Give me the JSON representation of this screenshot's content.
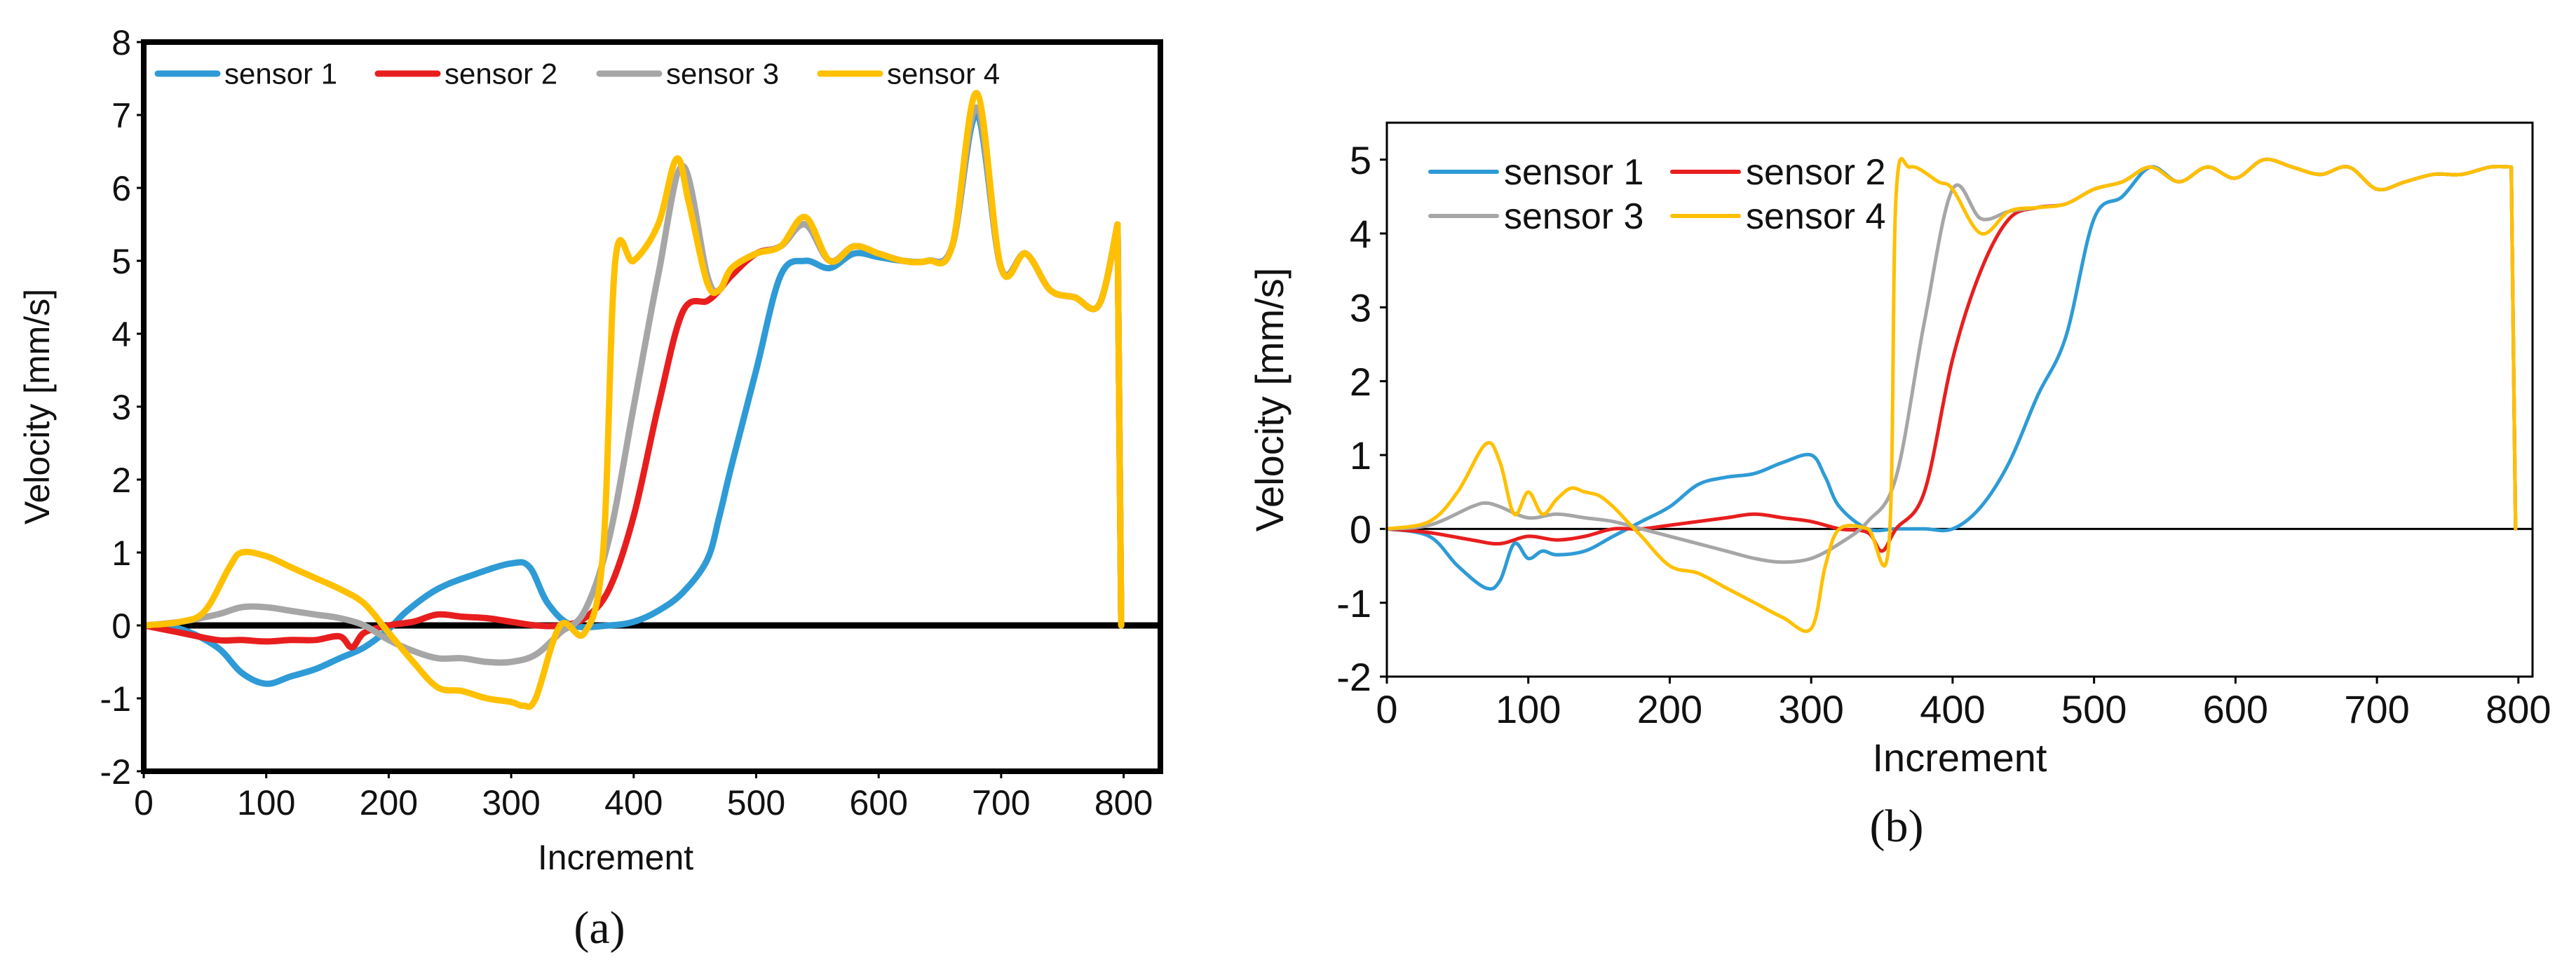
{
  "chart_data": [
    {
      "panel": "a",
      "panel_label": "(a)",
      "type": "line",
      "title": "",
      "xlabel": "Increment",
      "ylabel": "Velocity [mm/s]",
      "xlim": [
        0,
        830
      ],
      "ylim": [
        -2,
        8
      ],
      "xticks": [
        0,
        100,
        200,
        300,
        400,
        500,
        600,
        700,
        800
      ],
      "yticks": [
        -2,
        -1,
        0,
        1,
        2,
        3,
        4,
        5,
        6,
        7,
        8
      ],
      "legend": "top-left, single row",
      "series": [
        {
          "name": "sensor 1",
          "color": "#2e9bd6",
          "x": [
            0,
            30,
            60,
            80,
            100,
            120,
            140,
            160,
            180,
            200,
            215,
            240,
            270,
            300,
            315,
            330,
            350,
            380,
            400,
            420,
            440,
            460,
            470,
            480,
            500,
            520,
            540,
            560,
            580,
            600,
            620,
            640,
            660,
            680,
            700,
            720,
            740,
            760,
            780,
            795,
            798
          ],
          "y": [
            0,
            -0.05,
            -0.3,
            -0.65,
            -0.8,
            -0.7,
            -0.6,
            -0.45,
            -0.3,
            -0.05,
            0.2,
            0.5,
            0.7,
            0.85,
            0.8,
            0.3,
            0,
            0,
            0.05,
            0.2,
            0.45,
            0.9,
            1.5,
            2.2,
            3.5,
            4.8,
            5.0,
            4.9,
            5.1,
            5.05,
            5.0,
            5.0,
            5.2,
            7.0,
            4.9,
            5.1,
            4.6,
            4.5,
            4.4,
            5.5,
            0
          ]
        },
        {
          "name": "sensor 2",
          "color": "#e81e1e",
          "x": [
            0,
            30,
            60,
            80,
            100,
            120,
            140,
            160,
            170,
            180,
            200,
            220,
            240,
            260,
            280,
            300,
            320,
            340,
            360,
            380,
            400,
            420,
            440,
            460,
            470,
            480,
            500,
            520,
            540,
            560,
            580,
            600,
            620,
            640,
            660,
            680,
            700,
            720,
            740,
            760,
            780,
            795,
            798
          ],
          "y": [
            0,
            -0.1,
            -0.2,
            -0.2,
            -0.22,
            -0.2,
            -0.2,
            -0.15,
            -0.3,
            -0.1,
            0,
            0.05,
            0.15,
            0.12,
            0.1,
            0.05,
            0,
            0,
            0.1,
            0.5,
            1.5,
            3.0,
            4.3,
            4.45,
            4.6,
            4.8,
            5.1,
            5.2,
            5.5,
            5.0,
            5.2,
            5.1,
            5.0,
            5.0,
            5.2,
            7.1,
            4.9,
            5.1,
            4.6,
            4.5,
            4.4,
            5.5,
            0
          ]
        },
        {
          "name": "sensor 3",
          "color": "#a6a6a6",
          "x": [
            0,
            30,
            60,
            80,
            100,
            120,
            140,
            160,
            180,
            200,
            220,
            240,
            260,
            280,
            300,
            320,
            340,
            360,
            380,
            400,
            420,
            440,
            460,
            470,
            480,
            500,
            520,
            540,
            560,
            580,
            600,
            620,
            640,
            660,
            680,
            700,
            720,
            740,
            760,
            780,
            795,
            798
          ],
          "y": [
            0,
            0.05,
            0.15,
            0.25,
            0.25,
            0.2,
            0.15,
            0.1,
            0,
            -0.2,
            -0.35,
            -0.45,
            -0.45,
            -0.5,
            -0.5,
            -0.4,
            -0.1,
            0.2,
            1.2,
            3.0,
            4.8,
            6.3,
            4.8,
            4.6,
            4.9,
            5.1,
            5.2,
            5.5,
            5.0,
            5.2,
            5.1,
            5.0,
            5.0,
            5.2,
            7.1,
            4.9,
            5.1,
            4.6,
            4.5,
            4.4,
            5.5,
            0
          ]
        },
        {
          "name": "sensor 4",
          "color": "#ffc000",
          "x": [
            0,
            30,
            50,
            70,
            80,
            100,
            120,
            140,
            160,
            180,
            200,
            220,
            240,
            260,
            280,
            300,
            310,
            320,
            340,
            360,
            375,
            385,
            400,
            420,
            435,
            445,
            460,
            470,
            480,
            500,
            520,
            540,
            560,
            580,
            600,
            620,
            640,
            660,
            680,
            700,
            720,
            740,
            760,
            780,
            795,
            798
          ],
          "y": [
            0,
            0.05,
            0.2,
            0.8,
            1.0,
            0.95,
            0.8,
            0.65,
            0.5,
            0.3,
            -0.1,
            -0.5,
            -0.85,
            -0.9,
            -1.0,
            -1.05,
            -1.1,
            -1.0,
            0,
            -0.1,
            1.0,
            5.0,
            5.0,
            5.5,
            6.4,
            5.8,
            4.7,
            4.6,
            4.9,
            5.1,
            5.2,
            5.6,
            5.0,
            5.2,
            5.1,
            5.0,
            5.0,
            5.2,
            7.3,
            4.9,
            5.1,
            4.6,
            4.5,
            4.4,
            5.5,
            0
          ]
        }
      ]
    },
    {
      "panel": "b",
      "panel_label": "(b)",
      "type": "line",
      "title": "",
      "xlabel": "Increment",
      "ylabel": "Velocity [mm/s]",
      "xlim": [
        0,
        810
      ],
      "ylim": [
        -2,
        5.5
      ],
      "xticks": [
        0,
        100,
        200,
        300,
        400,
        500,
        600,
        700,
        800
      ],
      "yticks": [
        -2,
        -1,
        0,
        1,
        2,
        3,
        4,
        5
      ],
      "legend": "top-left, two rows",
      "series": [
        {
          "name": "sensor 1",
          "color": "#2e9bd6",
          "x": [
            0,
            30,
            50,
            70,
            80,
            90,
            100,
            110,
            120,
            140,
            160,
            180,
            200,
            220,
            240,
            260,
            280,
            300,
            310,
            320,
            340,
            360,
            380,
            400,
            420,
            440,
            460,
            480,
            500,
            520,
            540,
            560,
            580,
            600,
            620,
            640,
            660,
            680,
            700,
            720,
            740,
            760,
            780,
            795,
            798
          ],
          "y": [
            0,
            -0.1,
            -0.5,
            -0.8,
            -0.7,
            -0.2,
            -0.4,
            -0.3,
            -0.35,
            -0.3,
            -0.1,
            0.1,
            0.3,
            0.6,
            0.7,
            0.75,
            0.9,
            1.0,
            0.7,
            0.3,
            0,
            0,
            0,
            0,
            0.3,
            0.9,
            1.8,
            2.6,
            4.2,
            4.5,
            4.9,
            4.7,
            4.9,
            4.75,
            5.0,
            4.9,
            4.8,
            4.9,
            4.6,
            4.7,
            4.8,
            4.8,
            4.9,
            4.9,
            0
          ]
        },
        {
          "name": "sensor 2",
          "color": "#e81e1e",
          "x": [
            0,
            30,
            60,
            80,
            100,
            120,
            140,
            160,
            180,
            200,
            220,
            240,
            260,
            280,
            300,
            320,
            340,
            350,
            360,
            380,
            400,
            420,
            440,
            460,
            480,
            500,
            520,
            540,
            560,
            580,
            600,
            620,
            640,
            660,
            680,
            700,
            720,
            740,
            760,
            780,
            795,
            798
          ],
          "y": [
            0,
            -0.05,
            -0.15,
            -0.2,
            -0.1,
            -0.15,
            -0.1,
            0,
            0,
            0.05,
            0.1,
            0.15,
            0.2,
            0.15,
            0.1,
            0,
            -0.05,
            -0.3,
            0,
            0.5,
            2.3,
            3.5,
            4.2,
            4.35,
            4.4,
            4.6,
            4.7,
            4.9,
            4.7,
            4.9,
            4.75,
            5.0,
            4.9,
            4.8,
            4.9,
            4.6,
            4.7,
            4.8,
            4.8,
            4.9,
            4.9,
            0
          ]
        },
        {
          "name": "sensor 3",
          "color": "#a6a6a6",
          "x": [
            0,
            30,
            60,
            70,
            80,
            100,
            120,
            140,
            160,
            180,
            200,
            220,
            240,
            260,
            280,
            300,
            320,
            340,
            360,
            380,
            400,
            420,
            440,
            460,
            480,
            500,
            520,
            540,
            560,
            580,
            600,
            620,
            640,
            660,
            680,
            700,
            720,
            740,
            760,
            780,
            795,
            798
          ],
          "y": [
            0,
            0.05,
            0.3,
            0.35,
            0.3,
            0.15,
            0.2,
            0.15,
            0.1,
            0,
            -0.1,
            -0.2,
            -0.3,
            -0.4,
            -0.45,
            -0.4,
            -0.2,
            0.1,
            0.7,
            2.8,
            4.6,
            4.2,
            4.3,
            4.35,
            4.4,
            4.6,
            4.7,
            4.9,
            4.7,
            4.9,
            4.75,
            5.0,
            4.9,
            4.8,
            4.9,
            4.6,
            4.7,
            4.8,
            4.8,
            4.9,
            4.9,
            0
          ]
        },
        {
          "name": "sensor 4",
          "color": "#ffc000",
          "x": [
            0,
            30,
            50,
            70,
            80,
            90,
            100,
            110,
            120,
            130,
            140,
            150,
            160,
            170,
            180,
            200,
            220,
            240,
            260,
            280,
            300,
            310,
            320,
            340,
            355,
            360,
            370,
            390,
            400,
            420,
            440,
            460,
            480,
            500,
            520,
            540,
            560,
            580,
            600,
            620,
            640,
            660,
            680,
            700,
            720,
            740,
            760,
            780,
            795,
            798
          ],
          "y": [
            0,
            0.1,
            0.5,
            1.15,
            0.9,
            0.2,
            0.5,
            0.2,
            0.4,
            0.55,
            0.5,
            0.45,
            0.3,
            0.1,
            -0.1,
            -0.5,
            -0.6,
            -0.8,
            -1.0,
            -1.2,
            -1.35,
            -0.5,
            0,
            0,
            -0.2,
            4.5,
            4.9,
            4.7,
            4.6,
            4.0,
            4.3,
            4.35,
            4.4,
            4.6,
            4.7,
            4.9,
            4.7,
            4.9,
            4.75,
            5.0,
            4.9,
            4.8,
            4.9,
            4.6,
            4.7,
            4.8,
            4.8,
            4.9,
            4.9,
            0
          ]
        }
      ]
    }
  ]
}
